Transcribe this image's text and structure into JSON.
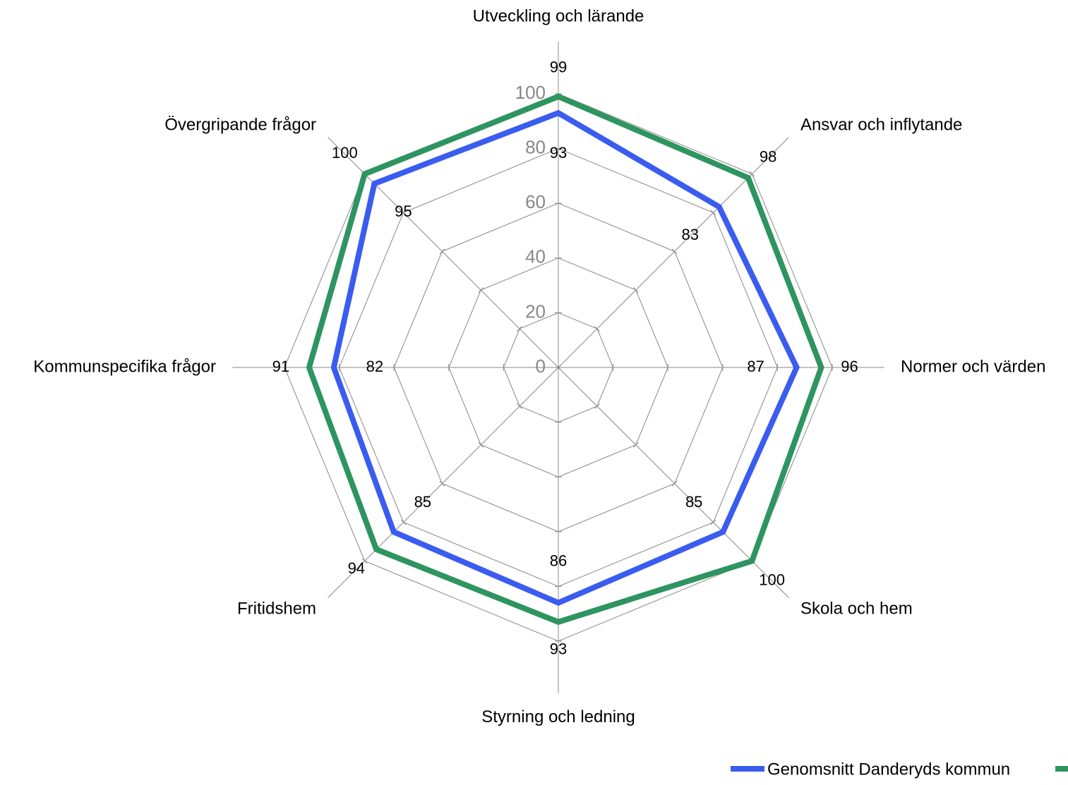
{
  "chart_data": {
    "type": "radar",
    "categories": [
      "Utveckling och lärande",
      "Ansvar och inflytande",
      "Normer och värden",
      "Skola och hem",
      "Styrning och ledning",
      "Fritidshem",
      "Kommunspecifika frågor",
      "Övergripande frågor"
    ],
    "series": [
      {
        "name": "Genomsnitt Danderyds kommun",
        "color": "#3a5cf0",
        "values": [
          93,
          83,
          87,
          85,
          86,
          85,
          82,
          95
        ]
      },
      {
        "color": "#2e9460",
        "values": [
          99,
          98,
          96,
          100,
          93,
          94,
          91,
          100
        ]
      }
    ],
    "ylim": [
      0,
      100
    ],
    "yticks": [
      0,
      20,
      40,
      60,
      80,
      100
    ],
    "grid": true,
    "legend": "bottom-right"
  }
}
